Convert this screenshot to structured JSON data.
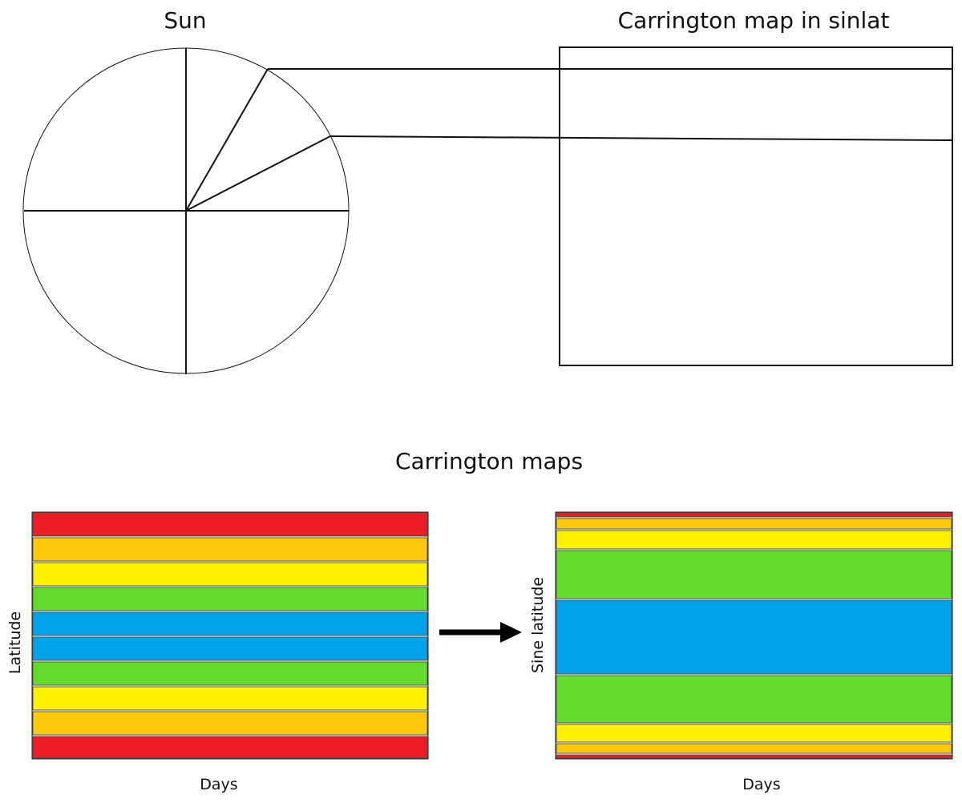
{
  "titles": {
    "sun": "Sun",
    "sinlat_map": "Carrington map in sinlat",
    "maps": "Carrington maps"
  },
  "left_map": {
    "y_label": "Latitude",
    "x_label": "Days"
  },
  "right_map": {
    "y_label": "Sine latitude",
    "x_label": "Days"
  }
}
